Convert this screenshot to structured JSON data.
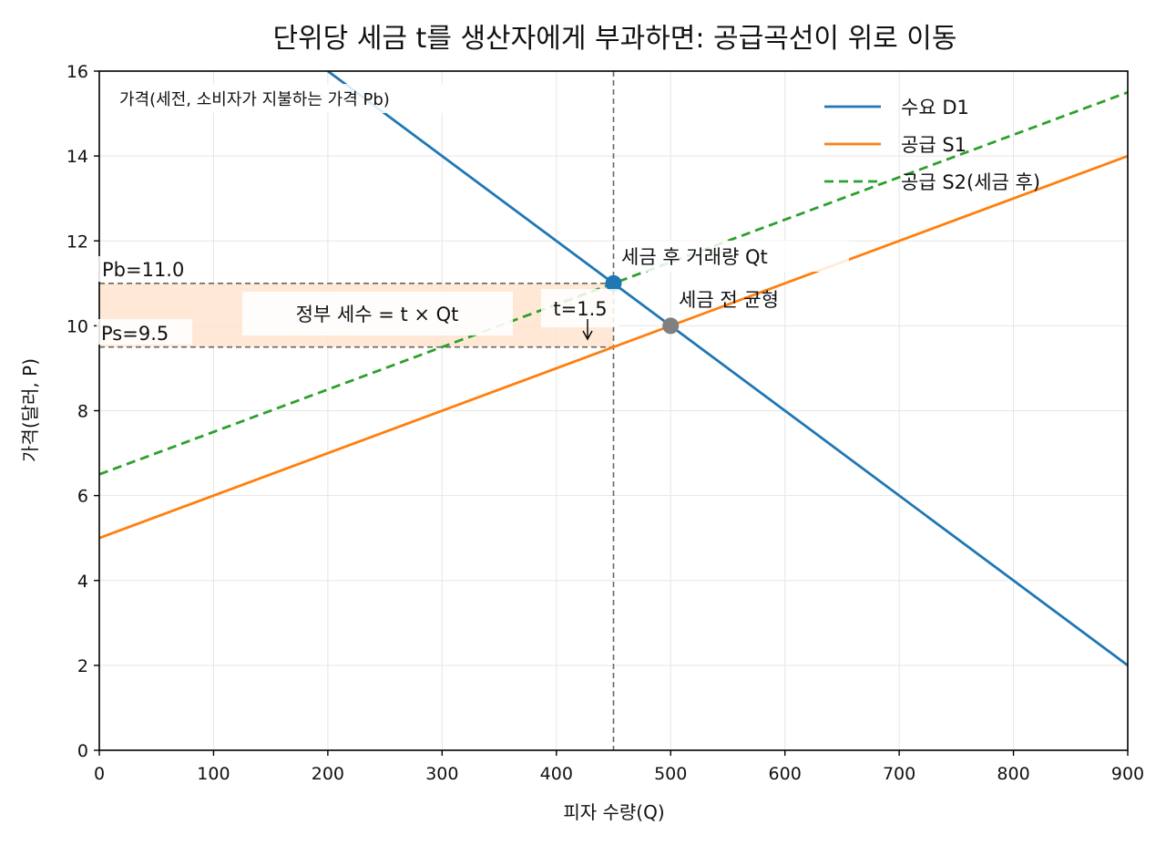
{
  "chart_data": {
    "type": "line",
    "title": "단위당 세금 t를 생산자에게 부과하면: 공급곡선이 위로 이동",
    "xlabel": "피자 수량(Q)",
    "ylabel": "가격(달러, P)",
    "xlim": [
      0,
      900
    ],
    "ylim": [
      0,
      16
    ],
    "xticks": [
      0,
      100,
      200,
      300,
      400,
      500,
      600,
      700,
      800,
      900
    ],
    "yticks": [
      0,
      2,
      4,
      6,
      8,
      10,
      12,
      14,
      16
    ],
    "grid": true,
    "legend_position": "top-right",
    "series": [
      {
        "name": "수요 D1",
        "color": "#1f77b4",
        "style": "solid",
        "x": [
          200,
          900
        ],
        "y": [
          16,
          2
        ]
      },
      {
        "name": "공급 S1",
        "color": "#ff7f0e",
        "style": "solid",
        "x": [
          0,
          900
        ],
        "y": [
          5,
          14
        ]
      },
      {
        "name": "공급 S2(세금 후)",
        "color": "#2ca02c",
        "style": "dashed",
        "x": [
          0,
          900
        ],
        "y": [
          6.5,
          15.5
        ]
      }
    ],
    "points": [
      {
        "name": "after-tax",
        "x": 450,
        "y": 11,
        "color": "#1f77b4",
        "label": "세금 후 거래량 Qt"
      },
      {
        "name": "pre-tax",
        "x": 500,
        "y": 10,
        "color": "#808080",
        "label": "세금 전 균형"
      }
    ],
    "tax_revenue": {
      "x": [
        0,
        450
      ],
      "y": [
        9.5,
        11
      ],
      "fill": "#ffe4cc",
      "label": "정부 세수 = t × Qt"
    },
    "reference_lines": {
      "qt": 450,
      "pb": 11,
      "ps": 9.5
    },
    "annotations": {
      "pb": "Pb=11.0",
      "ps": "Ps=9.5",
      "tax": "t=1.5",
      "price_note": "가격(세전, 소비자가 지불하는 가격 Pb)"
    }
  }
}
